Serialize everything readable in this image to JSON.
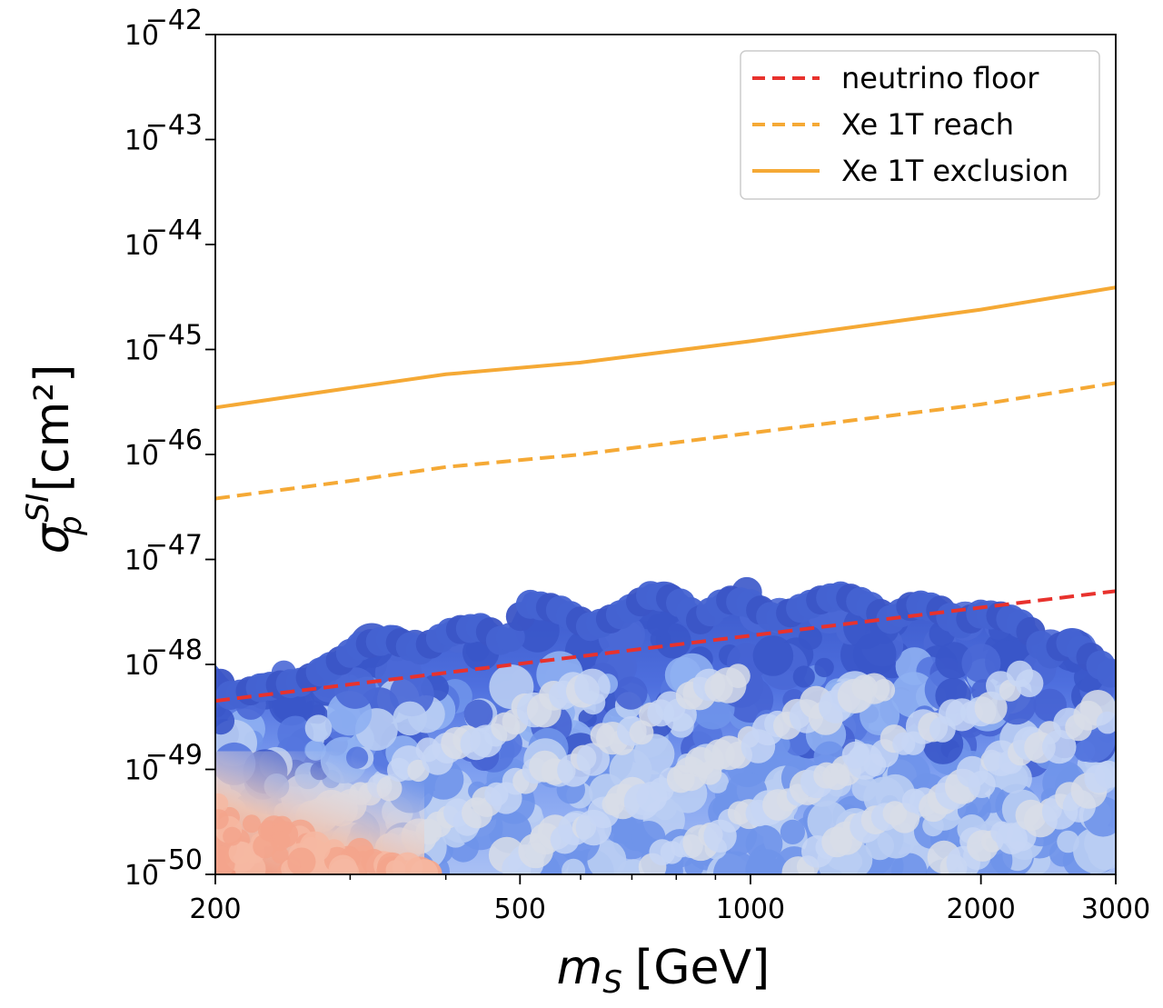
{
  "chart_data": {
    "type": "scatter",
    "xlabel": {
      "main": "m",
      "sub": "S",
      "unit": "[GeV]"
    },
    "ylabel": {
      "main": "σ",
      "sub": "p",
      "sup": "SI",
      "unit": "[cm²]"
    },
    "xscale": "log",
    "yscale": "log",
    "xlim": [
      200,
      3000
    ],
    "ylim": [
      1e-50,
      1e-42
    ],
    "xticks": [
      200,
      500,
      1000,
      2000,
      3000
    ],
    "xtick_labels": [
      "200",
      "500",
      "1000",
      "2000",
      "3000"
    ],
    "yticks_exp": [
      -42,
      -43,
      -44,
      -45,
      -46,
      -47,
      -48,
      -49,
      -50
    ],
    "ytick_base": "10",
    "ytick_exps": [
      "−42",
      "−43",
      "−44",
      "−45",
      "−46",
      "−47",
      "−48",
      "−49",
      "−50"
    ],
    "grid": false,
    "legend_position": "top-right",
    "series": [
      {
        "name": "neutrino floor",
        "style": "dashed",
        "color": "#e8322d",
        "x": [
          200,
          3000
        ],
        "y": [
          4.5e-49,
          5e-48
        ]
      },
      {
        "name": "Xe 1T reach",
        "style": "dashed",
        "color": "#f5a935",
        "x": [
          200,
          300,
          400,
          600,
          1000,
          2000,
          3000
        ],
        "y": [
          3.8e-47,
          5.6e-47,
          7.6e-47,
          1e-46,
          1.6e-46,
          3e-46,
          4.8e-46
        ]
      },
      {
        "name": "Xe 1T exclusion",
        "style": "solid",
        "color": "#f5a935",
        "x": [
          200,
          300,
          400,
          600,
          1000,
          2000,
          3000
        ],
        "y": [
          2.8e-46,
          4.3e-46,
          5.8e-46,
          7.5e-46,
          1.2e-45,
          2.4e-45,
          3.9e-45
        ]
      }
    ],
    "scatter_envelope": {
      "x": [
        200,
        210,
        230,
        260,
        290,
        310,
        340,
        370,
        410,
        450,
        480,
        510,
        560,
        620,
        680,
        740,
        800,
        860,
        930,
        1000,
        1080,
        1160,
        1240,
        1320,
        1420,
        1520,
        1640,
        1760,
        1880,
        2000,
        2150,
        2300,
        2450,
        2600,
        2800,
        3000
      ],
      "y": [
        1e-48,
        6.5e-49,
        8e-49,
        9e-49,
        1.4e-48,
        2e-48,
        2.3e-48,
        1.8e-48,
        2.8e-48,
        3e-48,
        2e-48,
        5e-48,
        4.5e-48,
        3e-48,
        4e-48,
        6e-48,
        5.5e-48,
        3.5e-48,
        5.5e-48,
        5e-48,
        3.5e-48,
        4.5e-48,
        5.5e-48,
        6e-48,
        5e-48,
        3.5e-48,
        5e-48,
        4.5e-48,
        3.2e-48,
        4e-48,
        3.8e-48,
        3e-48,
        1.6e-48,
        2.2e-48,
        1.5e-48,
        1e-48
      ]
    },
    "colors": {
      "point_dark": "#3a57c9",
      "point_mid": "#6f93ea",
      "point_light": "#b9cdf3",
      "point_grey": "#dcdde0",
      "point_warm": "#f3a58c"
    }
  }
}
